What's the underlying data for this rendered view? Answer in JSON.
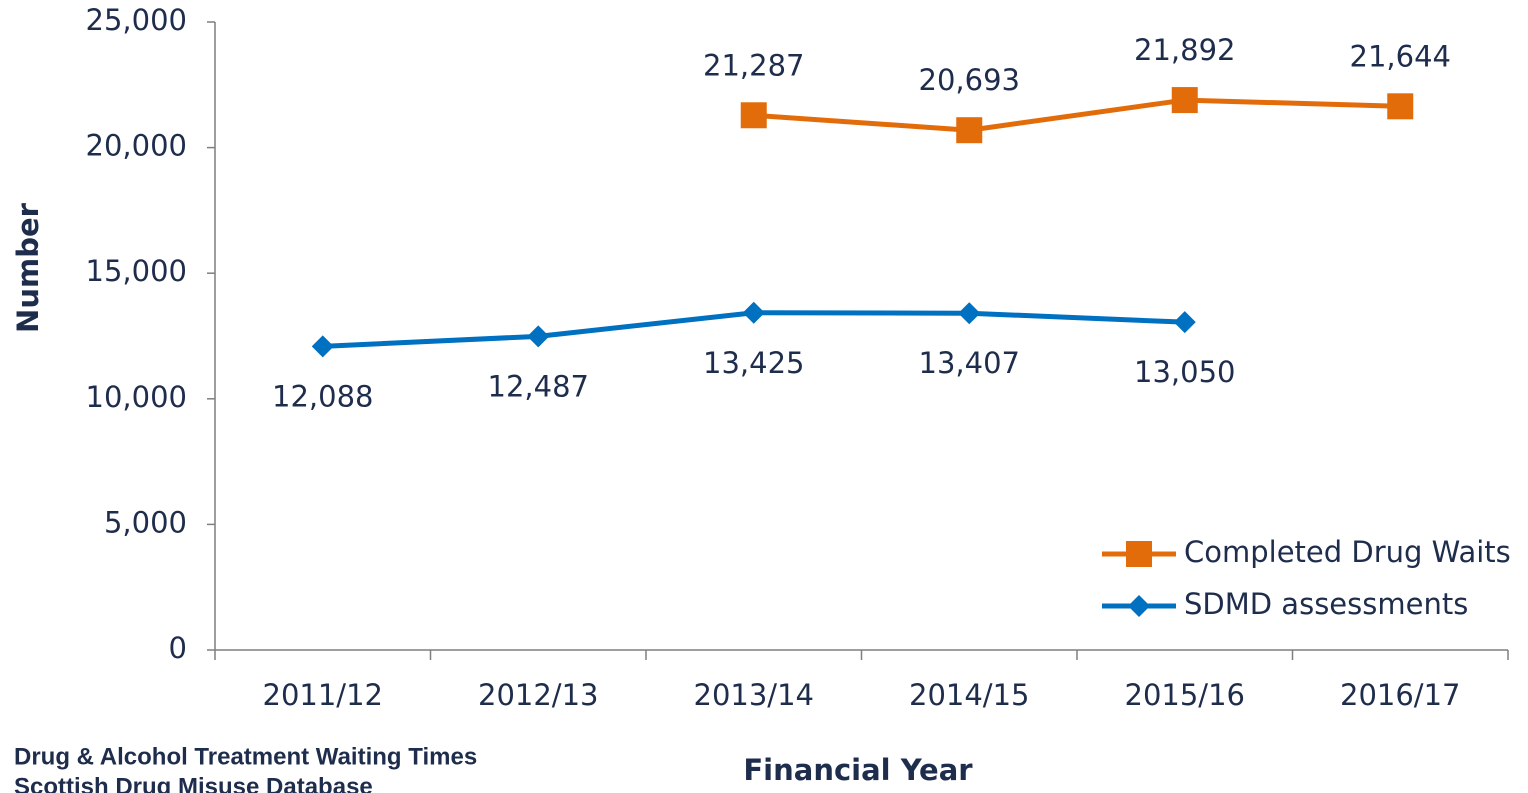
{
  "chart_data": {
    "type": "line",
    "y_label": "Number",
    "x_label": "Financial Year",
    "categories": [
      "2011/12",
      "2012/13",
      "2013/14",
      "2014/15",
      "2015/16",
      "2016/17"
    ],
    "series": [
      {
        "name": "Completed Drug Waits",
        "color": "#e36c0a",
        "marker": "square",
        "values": [
          null,
          null,
          21287,
          20693,
          21892,
          21644
        ],
        "value_labels": [
          null,
          null,
          "21,287",
          "20,693",
          "21,892",
          "21,644"
        ]
      },
      {
        "name": "SDMD assessments",
        "color": "#0070c0",
        "marker": "diamond",
        "values": [
          12088,
          12487,
          13425,
          13407,
          13050,
          null
        ],
        "value_labels": [
          "12,088",
          "12,487",
          "13,425",
          "13,407",
          "13,050",
          null
        ]
      }
    ],
    "ylim": [
      0,
      25000
    ],
    "yticks": [
      0,
      {
        "value": 5000,
        "label": "5,000"
      },
      {
        "value": 10000,
        "label": "10,000"
      },
      {
        "value": 15000,
        "label": "15,000"
      },
      {
        "value": 20000,
        "label": "20,000"
      },
      {
        "value": 25000,
        "label": "25,000"
      }
    ],
    "grid": false,
    "legend": "lower right",
    "source": [
      "Drug & Alcohol Treatment Waiting Times",
      "Scottish Drug Misuse Database"
    ]
  }
}
